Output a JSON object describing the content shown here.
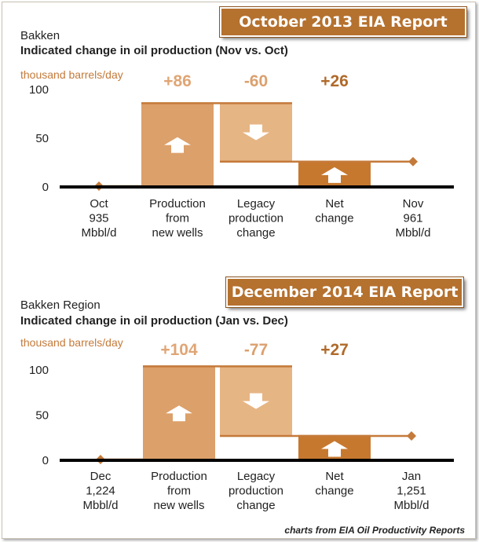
{
  "credit": "charts from EIA Oil Productivity Reports",
  "colors": {
    "new_wells": "#dca06a",
    "legacy": "#e6b584",
    "net": "#c7782f",
    "connector": "#c47a3a",
    "axis": "#000000",
    "label": "#c47a3a",
    "text": "#222222"
  },
  "chart_data": [
    {
      "type": "waterfall",
      "banner": "October 2013 EIA Report",
      "title": "Bakken",
      "subtitle": "Indicated change in oil production (Nov vs. Oct)",
      "ylabel": "thousand barrels/day",
      "ylim": [
        0,
        100
      ],
      "yticks": [
        "100",
        "50",
        "0"
      ],
      "categories": [
        [
          "Oct",
          "935",
          "Mbbl/d"
        ],
        [
          "Production",
          "from",
          "new wells"
        ],
        [
          "Legacy",
          "production",
          "change"
        ],
        [
          "Net",
          "change"
        ],
        [
          "Nov",
          "961",
          "Mbbl/d"
        ]
      ],
      "values": {
        "new_wells": 86,
        "legacy": -60,
        "net": 26
      },
      "value_labels": [
        "+86",
        "-60",
        "+26"
      ]
    },
    {
      "type": "waterfall",
      "banner": "December 2014 EIA Report",
      "title": "Bakken Region",
      "subtitle": "Indicated change in oil production (Jan vs. Dec)",
      "ylabel": "thousand barrels/day",
      "ylim": [
        0,
        100
      ],
      "yticks": [
        "100",
        "50",
        "0"
      ],
      "categories": [
        [
          "Dec",
          "1,224",
          "Mbbl/d"
        ],
        [
          "Production",
          "from",
          "new wells"
        ],
        [
          "Legacy",
          "production",
          "change"
        ],
        [
          "Net",
          "change"
        ],
        [
          "Jan",
          "1,251",
          "Mbbl/d"
        ]
      ],
      "values": {
        "new_wells": 104,
        "legacy": -77,
        "net": 27
      },
      "value_labels": [
        "+104",
        "-77",
        "+27"
      ]
    }
  ]
}
